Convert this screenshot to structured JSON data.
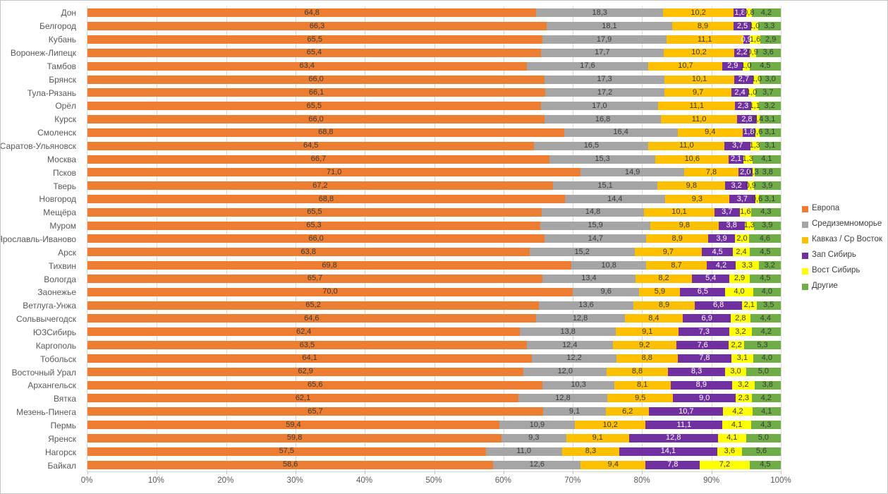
{
  "chart_data": {
    "type": "bar",
    "variant": "horizontal-100pct-stacked",
    "title": "",
    "xlabel": "",
    "ylabel": "",
    "xlim": [
      0,
      100
    ],
    "x_ticks": [
      "0%",
      "10%",
      "20%",
      "30%",
      "40%",
      "50%",
      "60%",
      "70%",
      "80%",
      "90%",
      "100%"
    ],
    "grid": true,
    "legend_position": "right",
    "decimal_separator": ",",
    "categories": [
      "Дон",
      "Белгород",
      "Кубань",
      "Воронеж-Липецк",
      "Тамбов",
      "Брянск",
      "Тула-Рязань",
      "Орёл",
      "Курск",
      "Смоленск",
      "Саратов-Ульяновск",
      "Москва",
      "Псков",
      "Тверь",
      "Новгород",
      "Мещёра",
      "Муром",
      "Ярославль-Иваново",
      "Арск",
      "Тихвин",
      "Вологда",
      "Заонежье",
      "Ветлуга-Унжа",
      "Сольвычегодск",
      "ЮЗСибирь",
      "Каргополь",
      "Тобольск",
      "Восточный Урал",
      "Архангельск",
      "Вятка",
      "Мезень-Пинега",
      "Пермь",
      "Яренск",
      "Нагорск",
      "Байкал"
    ],
    "series": [
      {
        "name": "Европа",
        "color": "#ED7D31",
        "label_color": "#3a3a3a",
        "values": [
          64.8,
          66.3,
          65.5,
          65.4,
          63.4,
          66.0,
          66.1,
          65.5,
          66.0,
          68.8,
          64.5,
          66.7,
          71.0,
          67.2,
          68.8,
          65.5,
          65.3,
          66.0,
          63.8,
          69.8,
          65.7,
          70.0,
          65.2,
          64.6,
          62.4,
          63.5,
          64.1,
          62.9,
          65.6,
          62.1,
          65.7,
          59.4,
          59.8,
          57.5,
          58.6
        ]
      },
      {
        "name": "Средиземноморье",
        "color": "#A5A5A5",
        "label_color": "#3a3a3a",
        "values": [
          18.3,
          18.1,
          17.9,
          17.7,
          17.6,
          17.3,
          17.2,
          17.0,
          16.8,
          16.4,
          16.5,
          15.3,
          14.9,
          15.1,
          14.4,
          14.8,
          15.9,
          14.7,
          15.2,
          10.8,
          13.4,
          9.6,
          13.6,
          12.8,
          13.8,
          12.4,
          12.2,
          12.0,
          10.3,
          12.8,
          9.1,
          10.9,
          9.3,
          11.0,
          12.6
        ]
      },
      {
        "name": "Кавказ / Ср Восток",
        "color": "#FFC000",
        "label_color": "#3a3a3a",
        "values": [
          10.2,
          8.9,
          11.1,
          10.2,
          10.7,
          10.1,
          9.7,
          11.1,
          11.0,
          9.4,
          11.0,
          10.6,
          7.8,
          9.8,
          9.3,
          10.1,
          9.8,
          8.9,
          9.7,
          8.7,
          8.2,
          5.9,
          8.9,
          8.4,
          9.1,
          9.2,
          8.8,
          8.8,
          8.1,
          9.5,
          6.2,
          10.2,
          9.1,
          8.3,
          9.4
        ]
      },
      {
        "name": "Зап Сибирь",
        "color": "#7030A0",
        "label_color": "#ffffff",
        "values": [
          1.8,
          2.5,
          0.9,
          2.2,
          2.9,
          2.7,
          2.4,
          2.3,
          2.8,
          1.8,
          3.7,
          2.1,
          2.0,
          3.2,
          3.7,
          3.7,
          3.8,
          3.9,
          4.5,
          4.2,
          5.4,
          6.5,
          6.8,
          6.9,
          7.3,
          7.6,
          7.8,
          8.3,
          8.9,
          9.0,
          10.7,
          11.1,
          12.8,
          14.1,
          7.8
        ]
      },
      {
        "name": "Вост Сибирь",
        "color": "#FFFF00",
        "label_color": "#3a3a3a",
        "values": [
          0.8,
          1.0,
          1.6,
          0.9,
          1.0,
          1.0,
          1.0,
          1.1,
          0.4,
          0.6,
          1.3,
          1.3,
          0.3,
          0.9,
          0.6,
          1.6,
          1.3,
          2.0,
          2.4,
          3.3,
          2.9,
          4.0,
          2.1,
          2.8,
          3.2,
          2.2,
          3.1,
          3.0,
          3.2,
          2.3,
          4.2,
          4.1,
          4.1,
          3.6,
          7.2
        ]
      },
      {
        "name": "Другие",
        "color": "#70AD47",
        "label_color": "#3a3a3a",
        "values": [
          4.2,
          3.3,
          2.9,
          3.6,
          4.5,
          3.0,
          3.7,
          3.2,
          3.1,
          3.1,
          3.1,
          4.1,
          3.8,
          3.9,
          3.1,
          4.3,
          3.9,
          4.6,
          4.5,
          3.2,
          4.5,
          4.0,
          3.5,
          4.4,
          4.2,
          5.3,
          4.0,
          5.0,
          3.8,
          4.2,
          4.1,
          4.3,
          5.0,
          5.6,
          4.5
        ]
      }
    ],
    "colors": {
      "gridline": "#d9d9d9",
      "axis_text": "#595959",
      "category_text": "#595959",
      "legend_text": "#404040"
    }
  }
}
